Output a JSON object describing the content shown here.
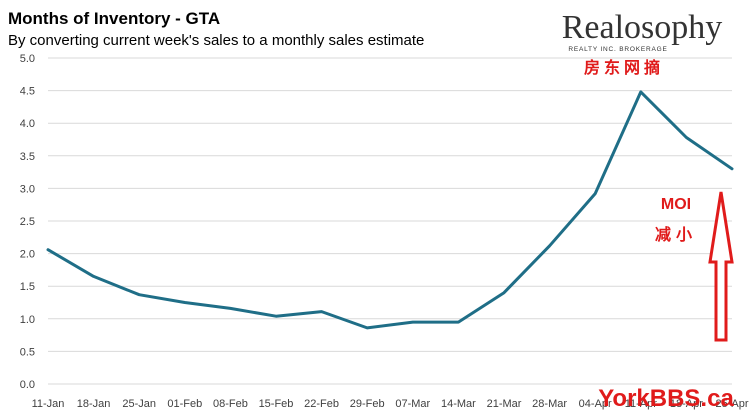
{
  "logo": {
    "name": "Realosophy",
    "tagline": "REALTY INC. BROKERAGE",
    "watermark_top": "房东网摘",
    "watermark_bottom": "YorkBBS.ca"
  },
  "annotation": {
    "line1": "MOI",
    "line2": "减小",
    "color": "#e01b1b"
  },
  "colors": {
    "series": "#1f6e87",
    "grid": "#d9d9d9",
    "axis_text": "#404040",
    "title": "#000000"
  },
  "chart_data": {
    "type": "line",
    "title": "Months of Inventory - GTA",
    "subtitle": "By converting current week's sales to a monthly sales estimate",
    "xlabel": "",
    "ylabel": "",
    "ylim": [
      0,
      5
    ],
    "yticks": [
      "0.0",
      "0.5",
      "1.0",
      "1.5",
      "2.0",
      "2.5",
      "3.0",
      "3.5",
      "4.0",
      "4.5",
      "5.0"
    ],
    "grid": true,
    "legend": "none",
    "categories": [
      "11-Jan",
      "18-Jan",
      "25-Jan",
      "01-Feb",
      "08-Feb",
      "15-Feb",
      "22-Feb",
      "29-Feb",
      "07-Mar",
      "14-Mar",
      "21-Mar",
      "28-Mar",
      "04-Apr",
      "11-Apr",
      "18-Apr",
      "25-Apr"
    ],
    "series": [
      {
        "values": [
          2.06,
          1.65,
          1.37,
          1.25,
          1.16,
          1.04,
          1.11,
          0.86,
          0.95,
          0.95,
          1.4,
          2.12,
          2.92,
          4.48,
          3.78,
          3.3
        ]
      }
    ]
  }
}
